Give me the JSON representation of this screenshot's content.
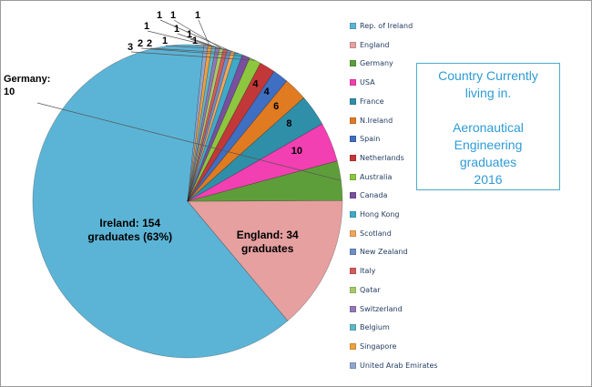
{
  "chart_data": {
    "type": "pie",
    "title_lines": [
      "Country Currently",
      "living in.",
      "",
      "Aeronautical",
      "Engineering",
      "graduates",
      "2016"
    ],
    "legend_position": "right",
    "slices": [
      {
        "name": "Rep. of Ireland",
        "value": 154,
        "color": "#5BB4D6",
        "label_lines": [
          "Ireland: 154",
          "graduates (63%)"
        ]
      },
      {
        "name": "England",
        "value": 34,
        "color": "#E6A0A0",
        "label_lines": [
          "England: 34",
          "graduates"
        ]
      },
      {
        "name": "Germany",
        "value": 10,
        "color": "#5E9E3A",
        "label_lines": [
          "Germany:",
          "10"
        ]
      },
      {
        "name": "USA",
        "value": 10,
        "color": "#F23FB1",
        "label_lines": [
          "10"
        ]
      },
      {
        "name": "France",
        "value": 8,
        "color": "#2F8FA8",
        "label_lines": [
          "8"
        ]
      },
      {
        "name": "N.Ireland",
        "value": 6,
        "color": "#E07B22",
        "label_lines": [
          "6"
        ]
      },
      {
        "name": "Spain",
        "value": 4,
        "color": "#3F6FC2",
        "label_lines": [
          "4"
        ]
      },
      {
        "name": "Netherlands",
        "value": 4,
        "color": "#C23838",
        "label_lines": [
          "4"
        ]
      },
      {
        "name": "Australia",
        "value": 3,
        "color": "#8DC63F",
        "label_lines": [
          "3"
        ]
      },
      {
        "name": "Canada",
        "value": 2,
        "color": "#7A4FA0",
        "label_lines": [
          "2"
        ]
      },
      {
        "name": "Hong Kong",
        "value": 2,
        "color": "#3FA9C9",
        "label_lines": [
          "2"
        ]
      },
      {
        "name": "Scotland",
        "value": 1,
        "color": "#F2A65A",
        "label_lines": [
          "1"
        ]
      },
      {
        "name": "New Zealand",
        "value": 1,
        "color": "#6C8FC8",
        "label_lines": [
          "1"
        ]
      },
      {
        "name": "Italy",
        "value": 1,
        "color": "#D65A5A",
        "label_lines": [
          "1"
        ]
      },
      {
        "name": "Qatar",
        "value": 1,
        "color": "#A8C86A",
        "label_lines": [
          "1"
        ]
      },
      {
        "name": "Switzerland",
        "value": 1,
        "color": "#9378B8",
        "label_lines": [
          "1"
        ]
      },
      {
        "name": "Belgium",
        "value": 1,
        "color": "#5FB8C8",
        "label_lines": [
          "1"
        ]
      },
      {
        "name": "Singapore",
        "value": 1,
        "color": "#F0A040",
        "label_lines": [
          "1"
        ]
      },
      {
        "name": "United Arab Emirates",
        "value": 1,
        "color": "#8FA6D0",
        "label_lines": [
          "1"
        ]
      }
    ]
  }
}
